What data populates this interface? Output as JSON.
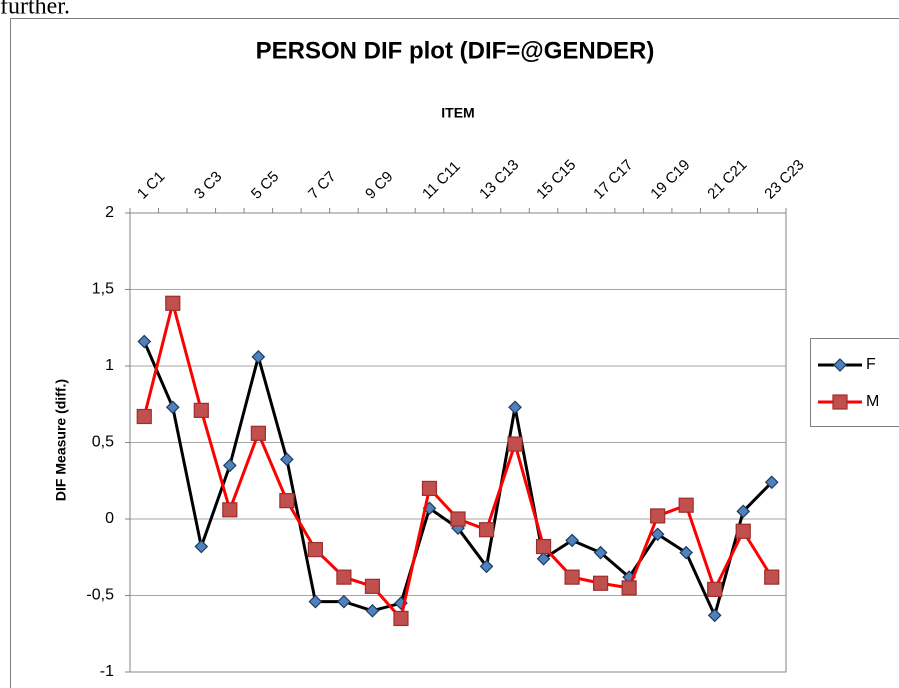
{
  "page_text": "further.",
  "chart_data": {
    "type": "line",
    "title": "PERSON DIF plot (DIF=@GENDER)",
    "x_label": "ITEM",
    "y_label": "DIF Measure (diff.)",
    "categories": [
      "1 C1",
      null,
      "3 C3",
      null,
      "5 C5",
      null,
      "7 C7",
      null,
      "9 C9",
      null,
      "11 C11",
      null,
      "13 C13",
      null,
      "15 C15",
      null,
      "17 C17",
      null,
      "19 C19",
      null,
      "21 C21",
      null,
      "23 C23"
    ],
    "series": [
      {
        "name": "F",
        "color": "#000000",
        "marker_color": "#4f81bd",
        "marker": "diamond",
        "values": [
          1.16,
          0.73,
          -0.18,
          0.35,
          1.06,
          0.39,
          -0.54,
          -0.54,
          -0.6,
          -0.55,
          0.07,
          -0.06,
          -0.31,
          0.73,
          -0.26,
          -0.14,
          -0.22,
          -0.38,
          -0.1,
          -0.22,
          -0.63,
          0.05,
          0.24
        ]
      },
      {
        "name": "M",
        "color": "#ff0000",
        "marker_color": "#c0504d",
        "marker": "square",
        "values": [
          0.67,
          1.41,
          0.71,
          0.06,
          0.56,
          0.12,
          -0.2,
          -0.38,
          -0.44,
          -0.65,
          0.2,
          0.0,
          -0.07,
          0.49,
          -0.18,
          -0.38,
          -0.42,
          -0.45,
          0.02,
          0.09,
          -0.46,
          -0.08,
          -0.38
        ]
      }
    ],
    "ylim": [
      -1,
      2
    ],
    "yticks": [
      -1,
      {
        "value": -0.5,
        "label": "-0,5"
      },
      0,
      {
        "value": 0.5,
        "label": "0,5"
      },
      1,
      {
        "value": 1.5,
        "label": "1,5"
      },
      2
    ],
    "grid": true,
    "legend": "right"
  }
}
